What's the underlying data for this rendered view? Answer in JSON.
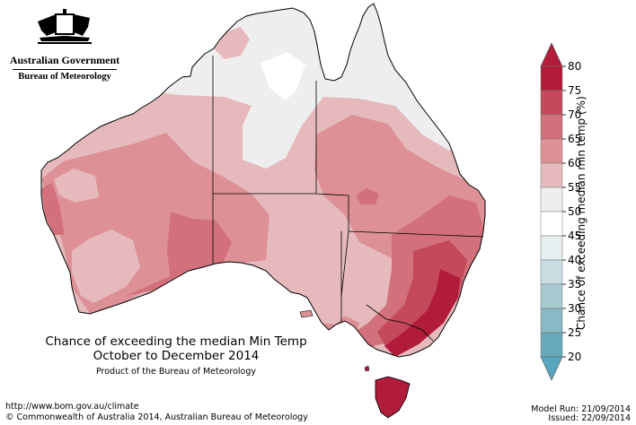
{
  "branding": {
    "org_line1": "Australian Government",
    "org_line2": "Bureau of Meteorology"
  },
  "title": {
    "line1": "Chance of exceeding the median Min Temp",
    "line2": "October to December 2014",
    "product": "Product of the Bureau of Meteorology"
  },
  "footer": {
    "url": "http://www.bom.gov.au/climate",
    "copyright": "© Commonwealth of Australia 2014, Australian Bureau of Meteorology",
    "model_run": "Model Run: 21/09/2014",
    "issued": "Issued: 22/09/2014"
  },
  "legend": {
    "title": "Chance of exceeding median min temp (%)",
    "ticks": [
      "80",
      "75",
      "70",
      "65",
      "60",
      "55",
      "50",
      "45",
      "40",
      "35",
      "30",
      "25",
      "20"
    ],
    "colors": [
      "#b01c3a",
      "#c44a5b",
      "#d2707b",
      "#dd9096",
      "#e6babd",
      "#efeeee",
      "#ffffff",
      "#e7eef0",
      "#c7dde1",
      "#a8cbd2",
      "#88b9c4",
      "#65a9bb"
    ],
    "top_arrow_color": "#b01c3a",
    "bottom_arrow_color": "#58a6bd"
  }
}
